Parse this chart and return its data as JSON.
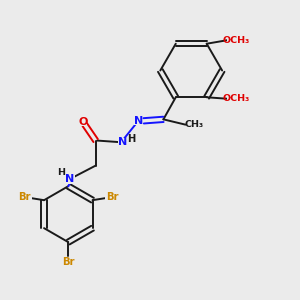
{
  "background_color": "#ebebeb",
  "bond_color": "#1a1a1a",
  "nitrogen_color": "#1414ff",
  "oxygen_color": "#e00000",
  "bromine_color": "#cc8800",
  "figsize": [
    3.0,
    3.0
  ],
  "dpi": 100,
  "xlim": [
    0,
    10
  ],
  "ylim": [
    0,
    10
  ]
}
